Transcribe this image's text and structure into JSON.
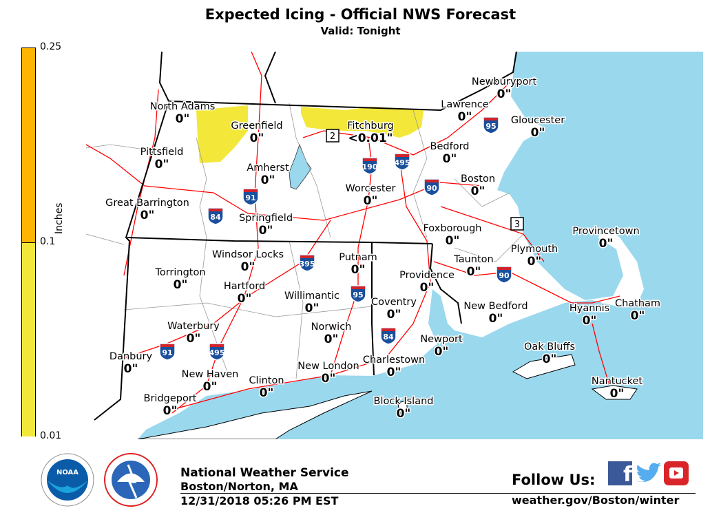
{
  "header": {
    "title": "Expected Icing - Official NWS Forecast",
    "subtitle": "Valid: Tonight"
  },
  "legend": {
    "title": "Inches",
    "ticks": [
      "0.25",
      "0.1",
      "0.01"
    ],
    "bins": [
      {
        "range": "0.1-0.25",
        "color": "#ffb400"
      },
      {
        "range": "0.01-0.1",
        "color": "#f3e83a"
      }
    ]
  },
  "colors": {
    "ocean": "#9ad8ee",
    "land": "#ffffff",
    "roads": "#ff0000",
    "state_borders": "#000000",
    "county_borders": "#999999",
    "icing_area": "#f3e83a"
  },
  "cities": [
    {
      "name": "North Adams",
      "value": "0\""
    },
    {
      "name": "Greenfield",
      "value": "0\""
    },
    {
      "name": "Fitchburg",
      "value": "<0.01\""
    },
    {
      "name": "Pittsfield",
      "value": "0\""
    },
    {
      "name": "Amherst",
      "value": "0\""
    },
    {
      "name": "Worcester",
      "value": "0\""
    },
    {
      "name": "Great Barrington",
      "value": "0\""
    },
    {
      "name": "Springfield",
      "value": "0\""
    },
    {
      "name": "Newburyport",
      "value": "0\""
    },
    {
      "name": "Lawrence",
      "value": "0\""
    },
    {
      "name": "Gloucester",
      "value": "0\""
    },
    {
      "name": "Bedford",
      "value": "0\""
    },
    {
      "name": "Boston",
      "value": "0\""
    },
    {
      "name": "Foxborough",
      "value": "0\""
    },
    {
      "name": "Provincetown",
      "value": "0\""
    },
    {
      "name": "Plymouth",
      "value": "0\""
    },
    {
      "name": "Windsor Locks",
      "value": "0\""
    },
    {
      "name": "Putnam",
      "value": "0\""
    },
    {
      "name": "Taunton",
      "value": "0\""
    },
    {
      "name": "Torrington",
      "value": "0\""
    },
    {
      "name": "Providence",
      "value": "0\""
    },
    {
      "name": "Hartford",
      "value": "0\""
    },
    {
      "name": "Willimantic",
      "value": "0\""
    },
    {
      "name": "Coventry",
      "value": "0\""
    },
    {
      "name": "Chatham",
      "value": "0\""
    },
    {
      "name": "New Bedford",
      "value": "0\""
    },
    {
      "name": "Hyannis",
      "value": "0\""
    },
    {
      "name": "Waterbury",
      "value": "0\""
    },
    {
      "name": "Norwich",
      "value": "0\""
    },
    {
      "name": "Newport",
      "value": "0\""
    },
    {
      "name": "Oak Bluffs",
      "value": "0\""
    },
    {
      "name": "Danbury",
      "value": "0\""
    },
    {
      "name": "Charlestown",
      "value": "0\""
    },
    {
      "name": "New London",
      "value": "0\""
    },
    {
      "name": "New Haven",
      "value": "0\""
    },
    {
      "name": "Clinton",
      "value": "0\""
    },
    {
      "name": "Nantucket",
      "value": "0\""
    },
    {
      "name": "Bridgeport",
      "value": "0\""
    },
    {
      "name": "Block Island",
      "value": "0\""
    }
  ],
  "highways": {
    "interstates": [
      "95",
      "190",
      "495",
      "90",
      "91",
      "84",
      "395",
      "95",
      "84",
      "91",
      "495",
      "90"
    ],
    "routes": [
      "2",
      "3"
    ]
  },
  "footer": {
    "org": "National Weather Service",
    "office": "Boston/Norton, MA",
    "timestamp": "12/31/2018 05:26 PM EST",
    "follow": "Follow Us:",
    "url": "weather.gov/Boston/winter",
    "logos": [
      "NOAA",
      "National Weather Service"
    ],
    "social_icons": [
      "facebook-icon",
      "twitter-icon",
      "youtube-icon"
    ]
  }
}
